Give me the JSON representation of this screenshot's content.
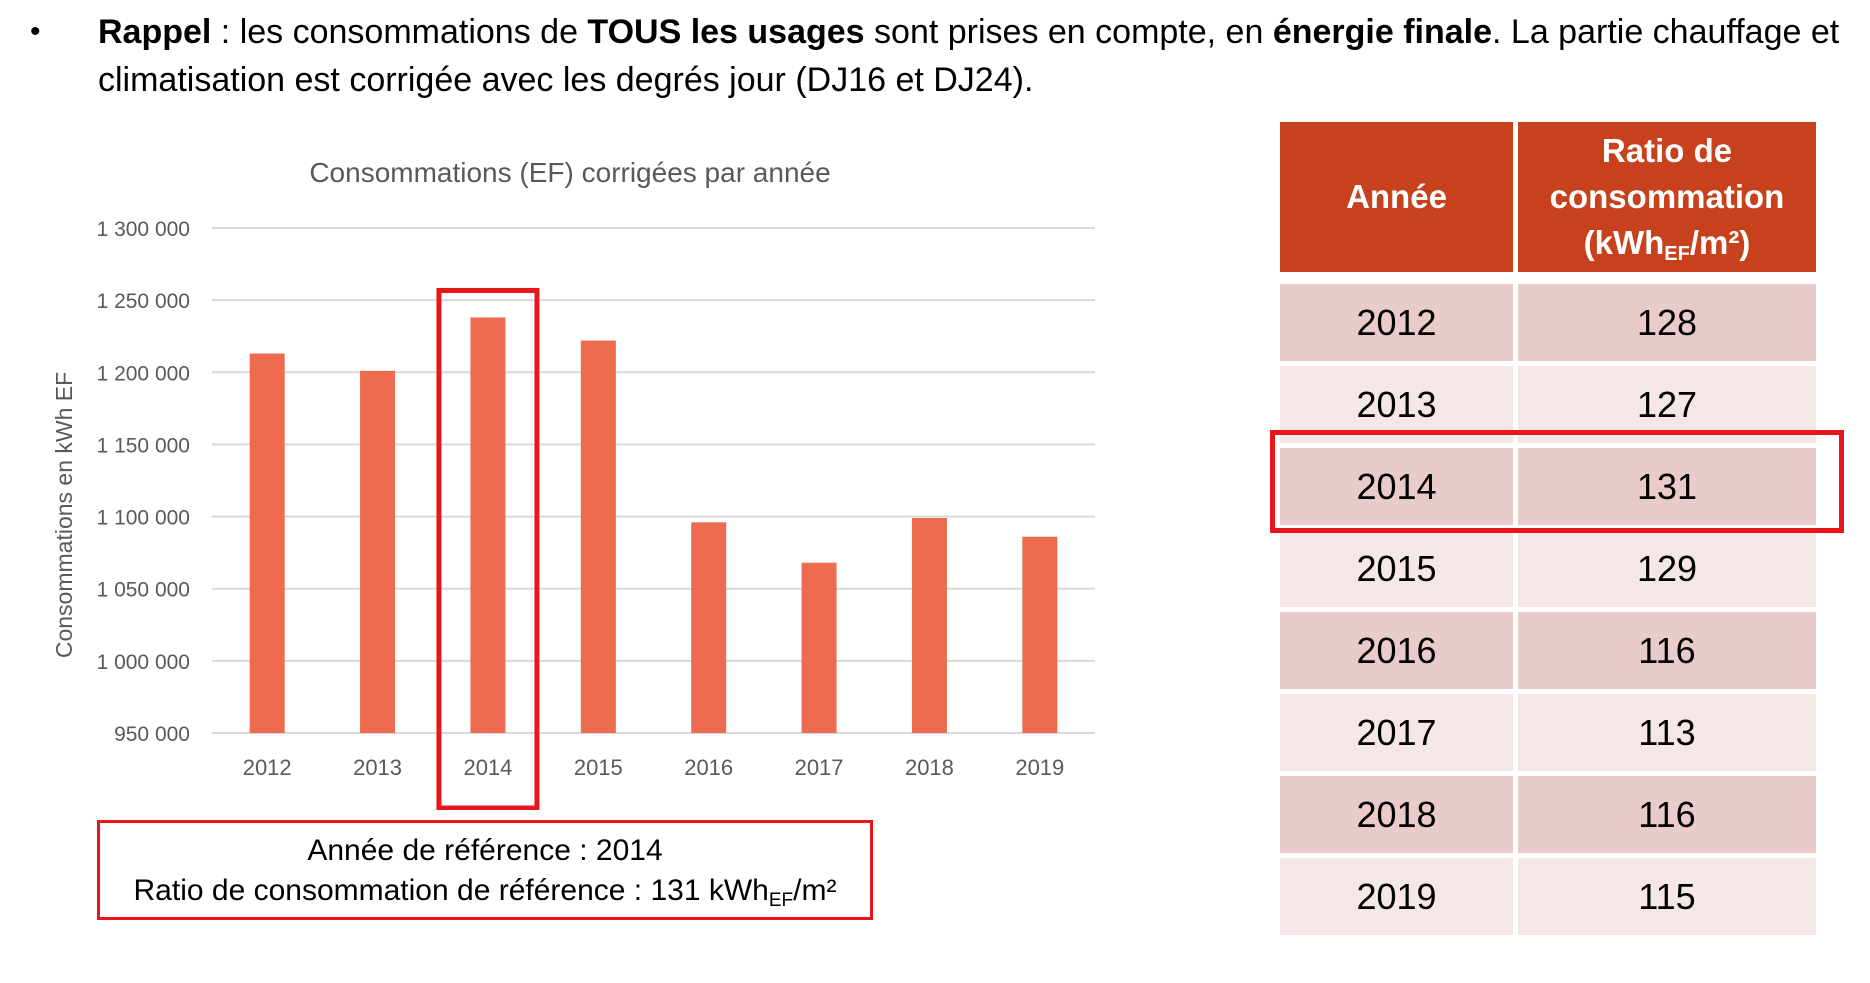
{
  "intro": {
    "bullet": "•",
    "t1": "Rappel",
    "t2": " : les consommations de ",
    "t3": "TOUS les usages",
    "t4": " sont prises en compte, en ",
    "t5": "énergie finale",
    "t6": ". La partie chauffage et climatisation est corrigée avec les degrés jour (DJ16 et DJ24)."
  },
  "colors": {
    "bar": "#ed6b4f",
    "highlight": "#e8161b",
    "table_header": "#c7411d",
    "row_dark": "#e9cbcb",
    "row_light": "#f4e7e6",
    "grid": "#d9d9d9",
    "axis_text": "#595959"
  },
  "chart_data": {
    "type": "bar",
    "title": "Consommations (EF) corrigées par année",
    "xlabel": "",
    "ylabel": "Consommations en kWh EF",
    "categories": [
      "2012",
      "2013",
      "2014",
      "2015",
      "2016",
      "2017",
      "2018",
      "2019"
    ],
    "values": [
      1213000,
      1201000,
      1238000,
      1222000,
      1096000,
      1068000,
      1099000,
      1086000
    ],
    "ylim": [
      950000,
      1300000
    ],
    "yticks": [
      950000,
      1000000,
      1050000,
      1100000,
      1150000,
      1200000,
      1250000,
      1300000
    ],
    "ytick_labels": [
      "950 000",
      "1 000 000",
      "1 050 000",
      "1 100 000",
      "1 150 000",
      "1 200 000",
      "1 250 000",
      "1 300 000"
    ],
    "highlight_category": "2014",
    "grid": true,
    "legend": false
  },
  "reference": {
    "line1": "Année de référence : 2014",
    "line2_prefix": "Ratio de consommation de référence : 131 kWh",
    "line2_sub": "EF",
    "line2_suffix": "/m²"
  },
  "table": {
    "header_year": "Année",
    "header_ratio_l1": "Ratio de",
    "header_ratio_l2": "consommation",
    "header_ratio_l3_prefix": "(kWh",
    "header_ratio_l3_sub": "EF",
    "header_ratio_l3_suffix": "/m²)",
    "rows": [
      {
        "year": "2012",
        "ratio": "128"
      },
      {
        "year": "2013",
        "ratio": "127"
      },
      {
        "year": "2014",
        "ratio": "131"
      },
      {
        "year": "2015",
        "ratio": "129"
      },
      {
        "year": "2016",
        "ratio": "116"
      },
      {
        "year": "2017",
        "ratio": "113"
      },
      {
        "year": "2018",
        "ratio": "116"
      },
      {
        "year": "2019",
        "ratio": "115"
      }
    ],
    "highlight_row": "2014"
  }
}
